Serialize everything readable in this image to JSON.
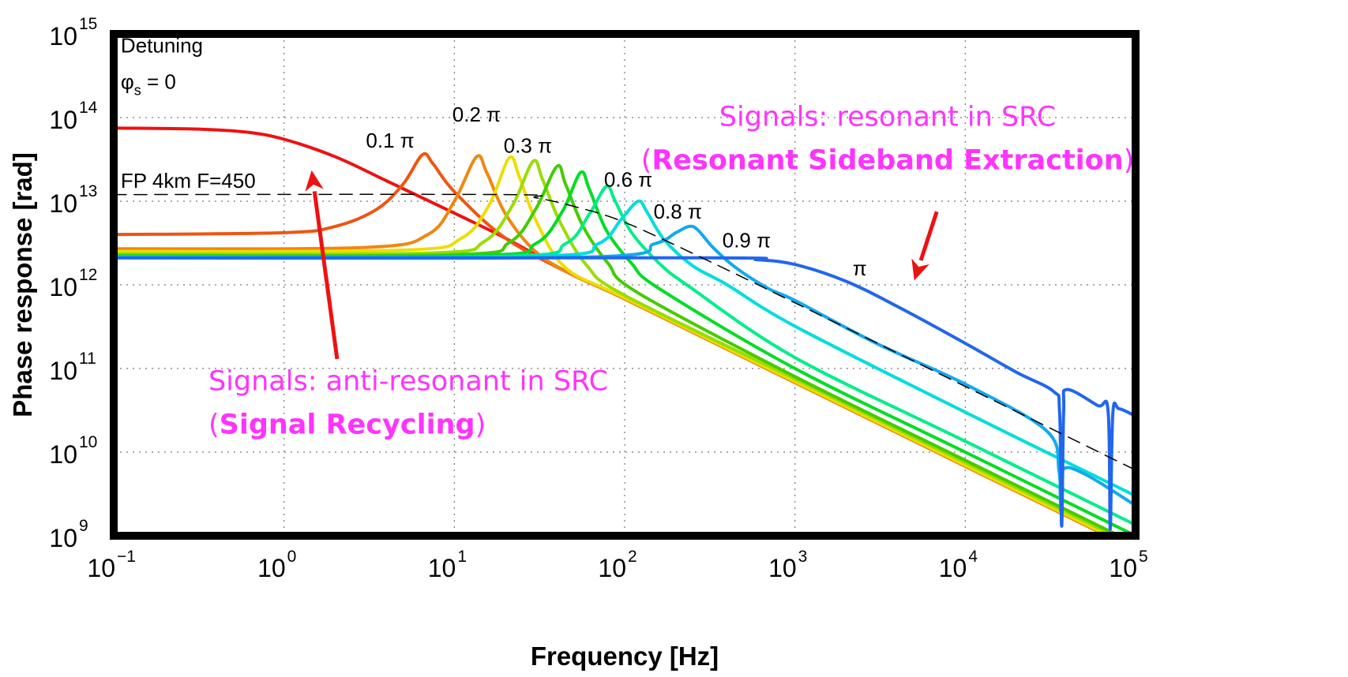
{
  "chart_data": {
    "type": "line",
    "title": "",
    "xlabel": "Frequency [Hz]",
    "ylabel": "Phase response [rad]",
    "x_scale": "log",
    "y_scale": "log",
    "xlim": [
      0.1,
      100000
    ],
    "ylim": [
      1000000000,
      1000000000000000
    ],
    "grid": "dotted",
    "x_ticks": [
      {
        "value": 0.1,
        "base": "10",
        "exp": "−1"
      },
      {
        "value": 1,
        "base": "10",
        "exp": "0"
      },
      {
        "value": 10,
        "base": "10",
        "exp": "1"
      },
      {
        "value": 100,
        "base": "10",
        "exp": "2"
      },
      {
        "value": 1000,
        "base": "10",
        "exp": "3"
      },
      {
        "value": 10000,
        "base": "10",
        "exp": "4"
      },
      {
        "value": 100000,
        "base": "10",
        "exp": "5"
      }
    ],
    "y_ticks": [
      {
        "value": 1000000000,
        "base": "10",
        "exp": "9"
      },
      {
        "value": 10000000000,
        "base": "10",
        "exp": "10"
      },
      {
        "value": 100000000000,
        "base": "10",
        "exp": "11"
      },
      {
        "value": 1000000000000,
        "base": "10",
        "exp": "12"
      },
      {
        "value": 10000000000000,
        "base": "10",
        "exp": "13"
      },
      {
        "value": 100000000000000,
        "base": "10",
        "exp": "14"
      },
      {
        "value": 1000000000000000,
        "base": "10",
        "exp": "15"
      }
    ],
    "series": [
      {
        "label": "Detuning φs = 0",
        "color": "#ee1111",
        "width": 4,
        "points": [
          [
            0.1,
            75000000000000.0
          ],
          [
            0.3,
            73000000000000.0
          ],
          [
            0.6,
            67000000000000.0
          ],
          [
            1,
            55000000000000.0
          ],
          [
            2,
            34000000000000.0
          ],
          [
            4,
            17500000000000.0
          ],
          [
            10,
            7200000000000.0
          ],
          [
            20,
            3600000000000.0
          ],
          [
            50,
            1300000000000.0
          ],
          [
            100,
            680000000000.0
          ],
          [
            1000,
            68000000000.0
          ],
          [
            10000,
            6800000000.0
          ],
          [
            100000,
            680000000.0
          ]
        ]
      },
      {
        "label": "0.1 π",
        "color": "#ee5511",
        "width": 4,
        "points": [
          [
            0.1,
            4000000000000.0
          ],
          [
            1,
            4200000000000.0
          ],
          [
            2,
            5000000000000.0
          ],
          [
            3.5,
            8000000000000.0
          ],
          [
            5,
            16000000000000.0
          ],
          [
            6.5,
            36000000000000.0
          ],
          [
            7.5,
            28000000000000.0
          ],
          [
            10,
            13000000000000.0
          ],
          [
            20,
            3600000000000.0
          ],
          [
            50,
            1300000000000.0
          ],
          [
            100,
            680000000000.0
          ],
          [
            1000,
            68000000000.0
          ],
          [
            10000,
            6800000000.0
          ],
          [
            100000,
            680000000.0
          ]
        ]
      },
      {
        "label": "0.2 π",
        "color": "#ee8811",
        "width": 4,
        "points": [
          [
            0.1,
            2700000000000.0
          ],
          [
            3,
            2800000000000.0
          ],
          [
            7,
            4000000000000.0
          ],
          [
            10,
            10000000000000.0
          ],
          [
            13.5,
            34000000000000.0
          ],
          [
            15.5,
            22000000000000.0
          ],
          [
            20,
            7000000000000.0
          ],
          [
            30,
            2500000000000.0
          ],
          [
            50,
            1300000000000.0
          ],
          [
            100,
            680000000000.0
          ],
          [
            1000,
            68000000000.0
          ],
          [
            10000,
            6800000000.0
          ],
          [
            100000,
            680000000.0
          ]
        ]
      },
      {
        "label": "0.3 π",
        "color": "#eedd00",
        "width": 4,
        "points": [
          [
            0.1,
            2500000000000.0
          ],
          [
            5,
            2600000000000.0
          ],
          [
            11,
            3600000000000.0
          ],
          [
            16,
            9000000000000.0
          ],
          [
            21,
            33000000000000.0
          ],
          [
            24,
            20000000000000.0
          ],
          [
            30,
            6000000000000.0
          ],
          [
            45,
            1600000000000.0
          ],
          [
            100,
            700000000000.0
          ],
          [
            1000,
            70000000000.0
          ],
          [
            10000,
            7000000000.0
          ],
          [
            100000,
            700000000.0
          ]
        ]
      },
      {
        "label": "",
        "color": "#99dd00",
        "width": 4,
        "points": [
          [
            0.1,
            2350000000000.0
          ],
          [
            7,
            2400000000000.0
          ],
          [
            15,
            3300000000000.0
          ],
          [
            22,
            9000000000000.0
          ],
          [
            29,
            30000000000000.0
          ],
          [
            33,
            18000000000000.0
          ],
          [
            42,
            5500000000000.0
          ],
          [
            60,
            1700000000000.0
          ],
          [
            100,
            750000000000.0
          ],
          [
            1000,
            75000000000.0
          ],
          [
            10000,
            7500000000.0
          ],
          [
            100000,
            750000000.0
          ]
        ]
      },
      {
        "label": "",
        "color": "#44cc00",
        "width": 4,
        "points": [
          [
            0.1,
            2250000000000.0
          ],
          [
            10,
            2300000000000.0
          ],
          [
            21,
            3200000000000.0
          ],
          [
            30,
            8000000000000.0
          ],
          [
            40,
            26000000000000.0
          ],
          [
            45,
            16000000000000.0
          ],
          [
            57,
            5000000000000.0
          ],
          [
            80,
            1800000000000.0
          ],
          [
            120,
            800000000000.0
          ],
          [
            1000,
            80000000000.0
          ],
          [
            10000,
            8000000000.0
          ],
          [
            100000,
            800000000.0
          ]
        ]
      },
      {
        "label": "0.6 π",
        "color": "#00dd22",
        "width": 4,
        "points": [
          [
            0.1,
            2200000000000.0
          ],
          [
            14,
            2250000000000.0
          ],
          [
            30,
            3100000000000.0
          ],
          [
            43,
            7500000000000.0
          ],
          [
            55,
            22000000000000.0
          ],
          [
            62,
            14000000000000.0
          ],
          [
            78,
            4500000000000.0
          ],
          [
            110,
            1800000000000.0
          ],
          [
            160,
            900000000000.0
          ],
          [
            1000,
            100000000000.0
          ],
          [
            10000,
            10000000000.0
          ],
          [
            100000,
            1000000000.0
          ]
        ]
      },
      {
        "label": "",
        "color": "#00ee88",
        "width": 4,
        "points": [
          [
            0.1,
            2150000000000.0
          ],
          [
            20,
            2200000000000.0
          ],
          [
            45,
            3100000000000.0
          ],
          [
            62,
            7000000000000.0
          ],
          [
            78,
            15000000000000.0
          ],
          [
            88,
            10000000000000.0
          ],
          [
            110,
            4200000000000.0
          ],
          [
            160,
            1800000000000.0
          ],
          [
            240,
            950000000000.0
          ],
          [
            1000,
            135000000000.0
          ],
          [
            10000,
            13500000000.0
          ],
          [
            100000,
            1350000000.0
          ]
        ]
      },
      {
        "label": "0.8 π",
        "color": "#00dddd",
        "width": 4,
        "points": [
          [
            0.1,
            2150000000000.0
          ],
          [
            30,
            2200000000000.0
          ],
          [
            70,
            3100000000000.0
          ],
          [
            95,
            6000000000000.0
          ],
          [
            120,
            10000000000000.0
          ],
          [
            135,
            7500000000000.0
          ],
          [
            170,
            3500000000000.0
          ],
          [
            250,
            1700000000000.0
          ],
          [
            400,
            1000000000000.0
          ],
          [
            1000,
            320000000000.0
          ],
          [
            10000,
            30000000000.0
          ],
          [
            100000,
            3000000000.0
          ]
        ]
      },
      {
        "label": "0.9 π",
        "color": "#11aaee",
        "width": 4,
        "points": [
          [
            0.1,
            2100000000000.0
          ],
          [
            60,
            2150000000000.0
          ],
          [
            150,
            3100000000000.0
          ],
          [
            200,
            4200000000000.0
          ],
          [
            240,
            5000000000000.0
          ],
          [
            270,
            4500000000000.0
          ],
          [
            330,
            2800000000000.0
          ],
          [
            450,
            1600000000000.0
          ],
          [
            700,
            900000000000.0
          ],
          [
            1000,
            650000000000.0
          ],
          [
            3000,
            200000000000.0
          ],
          [
            10000,
            65000000000.0
          ],
          [
            30000,
            18000000000.0
          ],
          [
            35500,
            6000000000.0
          ],
          [
            36300,
            2000000000.0
          ],
          [
            37100,
            6000000000.0
          ],
          [
            50000,
            5500000000.0
          ],
          [
            100000,
            2300000000.0
          ]
        ]
      },
      {
        "label": "π",
        "color": "#2266ee",
        "width": 4,
        "points": [
          [
            0.1,
            2100000000000.0
          ],
          [
            300,
            2100000000000.0
          ],
          [
            600,
            2000000000000.0
          ],
          [
            1000,
            1750000000000.0
          ],
          [
            2000,
            1100000000000.0
          ],
          [
            4000,
            550000000000.0
          ],
          [
            10000,
            200000000000.0
          ],
          [
            20000,
            90000000000.0
          ],
          [
            33000,
            53000000000.0
          ],
          [
            35800,
            30000000000.0
          ],
          [
            36800,
            1300000000.0
          ],
          [
            37800,
            30000000000.0
          ],
          [
            39500,
            56000000000.0
          ],
          [
            60000,
            36000000000.0
          ],
          [
            69000,
            31000000000.0
          ],
          [
            71000,
            1200000000.0
          ],
          [
            73500,
            29000000000.0
          ],
          [
            80000,
            33000000000.0
          ],
          [
            100000,
            27000000000.0
          ]
        ]
      },
      {
        "label": "FP 4km F=450",
        "color": "#000000",
        "width": 1.5,
        "dash": "16,10",
        "points": [
          [
            0.1,
            12000000000000.0
          ],
          [
            20,
            12000000000000.0
          ],
          [
            30,
            11000000000000.0
          ],
          [
            50,
            8700000000000.0
          ],
          [
            100,
            5600000000000.0
          ],
          [
            300,
            2000000000000.0
          ],
          [
            1000,
            610000000000.0
          ],
          [
            10000,
            61000000000.0
          ],
          [
            100000,
            6100000000.0
          ]
        ]
      }
    ],
    "curve_labels": [
      {
        "text": "Detuning",
        "x": 0.11,
        "y": 600000000000000.0,
        "anchor": "start"
      },
      {
        "text": "0.1 π",
        "x": 4.2,
        "y": 44000000000000.0,
        "anchor": "middle"
      },
      {
        "text": "0.2 π",
        "x": 13.5,
        "y": 90000000000000.0,
        "anchor": "middle"
      },
      {
        "text": "0.3 π",
        "x": 27,
        "y": 38000000000000.0,
        "anchor": "middle"
      },
      {
        "text": "0.6 π",
        "x": 105,
        "y": 15000000000000.0,
        "anchor": "middle"
      },
      {
        "text": "0.8 π",
        "x": 205,
        "y": 6200000000000.0,
        "anchor": "middle"
      },
      {
        "text": "0.9 π",
        "x": 520,
        "y": 2800000000000.0,
        "anchor": "middle"
      },
      {
        "text": "π",
        "x": 2400,
        "y": 1300000000000.0,
        "anchor": "middle"
      },
      {
        "text": "FP 4km F=450",
        "x": 0.11,
        "y": 14500000000000.0,
        "anchor": "start"
      }
    ],
    "phi_label": {
      "prefix": "φ",
      "sub": "s",
      "suffix": " = 0",
      "x": 0.11,
      "y": 220000000000000.0
    },
    "annotations": [
      {
        "id": "src-resonant",
        "line1": "Signals: resonant in SRC",
        "line2_pre": "(",
        "line2_bold": "Resonant Sideband Extraction",
        "line2_post": ")",
        "x": 3500,
        "y": 80000000000000.0,
        "anchor": "middle"
      },
      {
        "id": "src-anti",
        "line1": "Signals: anti-resonant in SRC",
        "line2_pre": "(",
        "line2_bold": "Signal Recycling",
        "line2_post": ")",
        "x": 0.36,
        "y": 55000000000.0,
        "anchor": "start"
      }
    ],
    "arrows": [
      {
        "from": [
          2.05,
          130000000000.0
        ],
        "to": [
          1.45,
          24000000000000.0
        ],
        "color": "#ee1111"
      },
      {
        "from": [
          6800,
          7500000000000.0
        ],
        "to": [
          5000,
          1100000000000.0
        ],
        "color": "#ee1111"
      }
    ]
  }
}
